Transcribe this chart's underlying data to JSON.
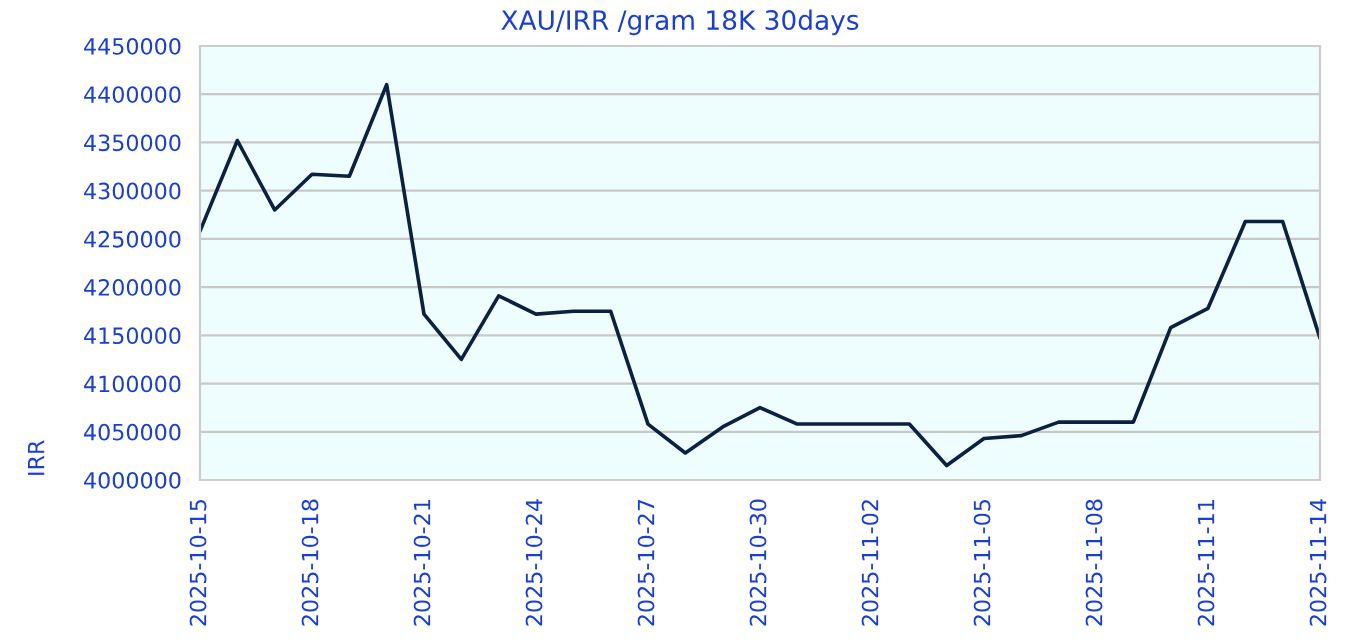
{
  "chart_data": {
    "type": "line",
    "title": "XAU/IRR /gram 18K 30days",
    "ylabel": "IRR",
    "x": [
      "2025-10-15",
      "2025-10-16",
      "2025-10-17",
      "2025-10-18",
      "2025-10-19",
      "2025-10-20",
      "2025-10-21",
      "2025-10-22",
      "2025-10-23",
      "2025-10-24",
      "2025-10-25",
      "2025-10-26",
      "2025-10-27",
      "2025-10-28",
      "2025-10-29",
      "2025-10-30",
      "2025-10-31",
      "2025-11-01",
      "2025-11-02",
      "2025-11-03",
      "2025-11-04",
      "2025-11-05",
      "2025-11-06",
      "2025-11-07",
      "2025-11-08",
      "2025-11-09",
      "2025-11-10",
      "2025-11-11",
      "2025-11-12",
      "2025-11-13",
      "2025-11-14"
    ],
    "series": [
      {
        "color": "#0d2040",
        "values": [
          4258000,
          4352000,
          4280000,
          4317000,
          4315000,
          4410000,
          4172000,
          4125000,
          4191000,
          4172000,
          4175000,
          4175000,
          4058000,
          4028000,
          4055000,
          4075000,
          4058000,
          4058000,
          4058000,
          4058000,
          4015000,
          4043000,
          4046000,
          4060000,
          4060000,
          4060000,
          4158000,
          4178000,
          4268000,
          4268000,
          4147000
        ]
      }
    ],
    "xlim": [
      "2025-10-15",
      "2025-11-14"
    ],
    "xticks": [
      "2025-10-15",
      "2025-10-18",
      "2025-10-21",
      "2025-10-24",
      "2025-10-27",
      "2025-10-30",
      "2025-11-02",
      "2025-11-05",
      "2025-11-08",
      "2025-11-11",
      "2025-11-14"
    ],
    "ylim": [
      4000000,
      4450000
    ],
    "yticks": [
      4000000,
      4050000,
      4100000,
      4150000,
      4200000,
      4250000,
      4300000,
      4350000,
      4400000,
      4450000
    ],
    "grid": "y",
    "marker": "none",
    "line_style": "solid"
  }
}
